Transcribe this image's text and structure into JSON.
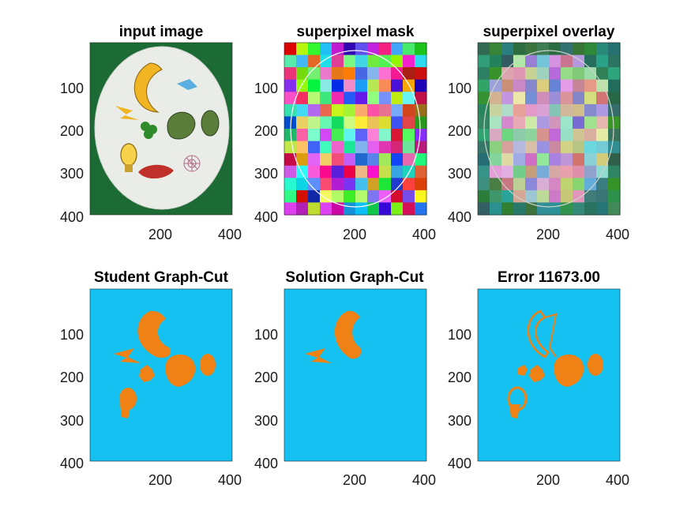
{
  "figure": {
    "background": "#ffffff",
    "panels": [
      {
        "title": "input image",
        "kind": "photo"
      },
      {
        "title": "superpixel mask",
        "kind": "mask"
      },
      {
        "title": "superpixel overlay",
        "kind": "overlay"
      },
      {
        "title": "Student Graph-Cut",
        "kind": "student"
      },
      {
        "title": "Solution Graph-Cut",
        "kind": "solution"
      },
      {
        "title": "Error 11673.00",
        "kind": "error"
      }
    ],
    "yticks": [
      "100",
      "200",
      "300",
      "400"
    ],
    "xticks": [
      "200",
      "400"
    ],
    "colors": {
      "felt_green": "#1d6b34",
      "plate_white": "#e9ece7",
      "segmentation_bg": "#14c1f0",
      "segmentation_fg": "#f08114"
    }
  }
}
